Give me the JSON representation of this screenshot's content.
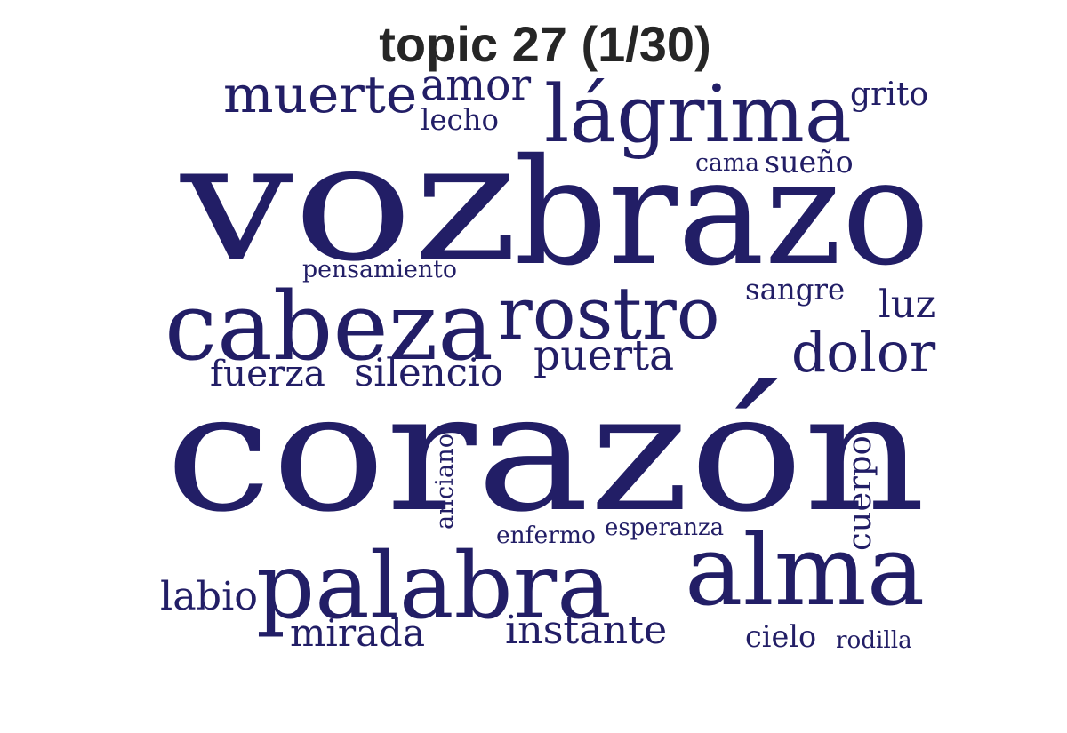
{
  "title": "topic 27 (1/30)",
  "word_color": "#221E66",
  "words": [
    {
      "text": "corazón",
      "rank": 1
    },
    {
      "text": "voz",
      "rank": 2
    },
    {
      "text": "brazo",
      "rank": 3
    },
    {
      "text": "cabeza",
      "rank": 4
    },
    {
      "text": "palabra",
      "rank": 5
    },
    {
      "text": "alma",
      "rank": 6
    },
    {
      "text": "lágrima",
      "rank": 7
    },
    {
      "text": "rostro",
      "rank": 8
    },
    {
      "text": "muerte",
      "rank": 9
    },
    {
      "text": "dolor",
      "rank": 10
    },
    {
      "text": "puerta",
      "rank": 11
    },
    {
      "text": "silencio",
      "rank": 12
    },
    {
      "text": "fuerza",
      "rank": 13
    },
    {
      "text": "instante",
      "rank": 14
    },
    {
      "text": "mirada",
      "rank": 15
    },
    {
      "text": "labio",
      "rank": 16
    },
    {
      "text": "amor",
      "rank": 17
    },
    {
      "text": "luz",
      "rank": 18
    },
    {
      "text": "cuerpo",
      "rank": 19
    },
    {
      "text": "grito",
      "rank": 20
    },
    {
      "text": "cielo",
      "rank": 21
    },
    {
      "text": "sangre",
      "rank": 22
    },
    {
      "text": "lecho",
      "rank": 23
    },
    {
      "text": "sueño",
      "rank": 24
    },
    {
      "text": "esperanza",
      "rank": 25
    },
    {
      "text": "enfermo",
      "rank": 26
    },
    {
      "text": "pensamiento",
      "rank": 27
    },
    {
      "text": "anciano",
      "rank": 28
    },
    {
      "text": "rodilla",
      "rank": 29
    },
    {
      "text": "cama",
      "rank": 30
    }
  ]
}
